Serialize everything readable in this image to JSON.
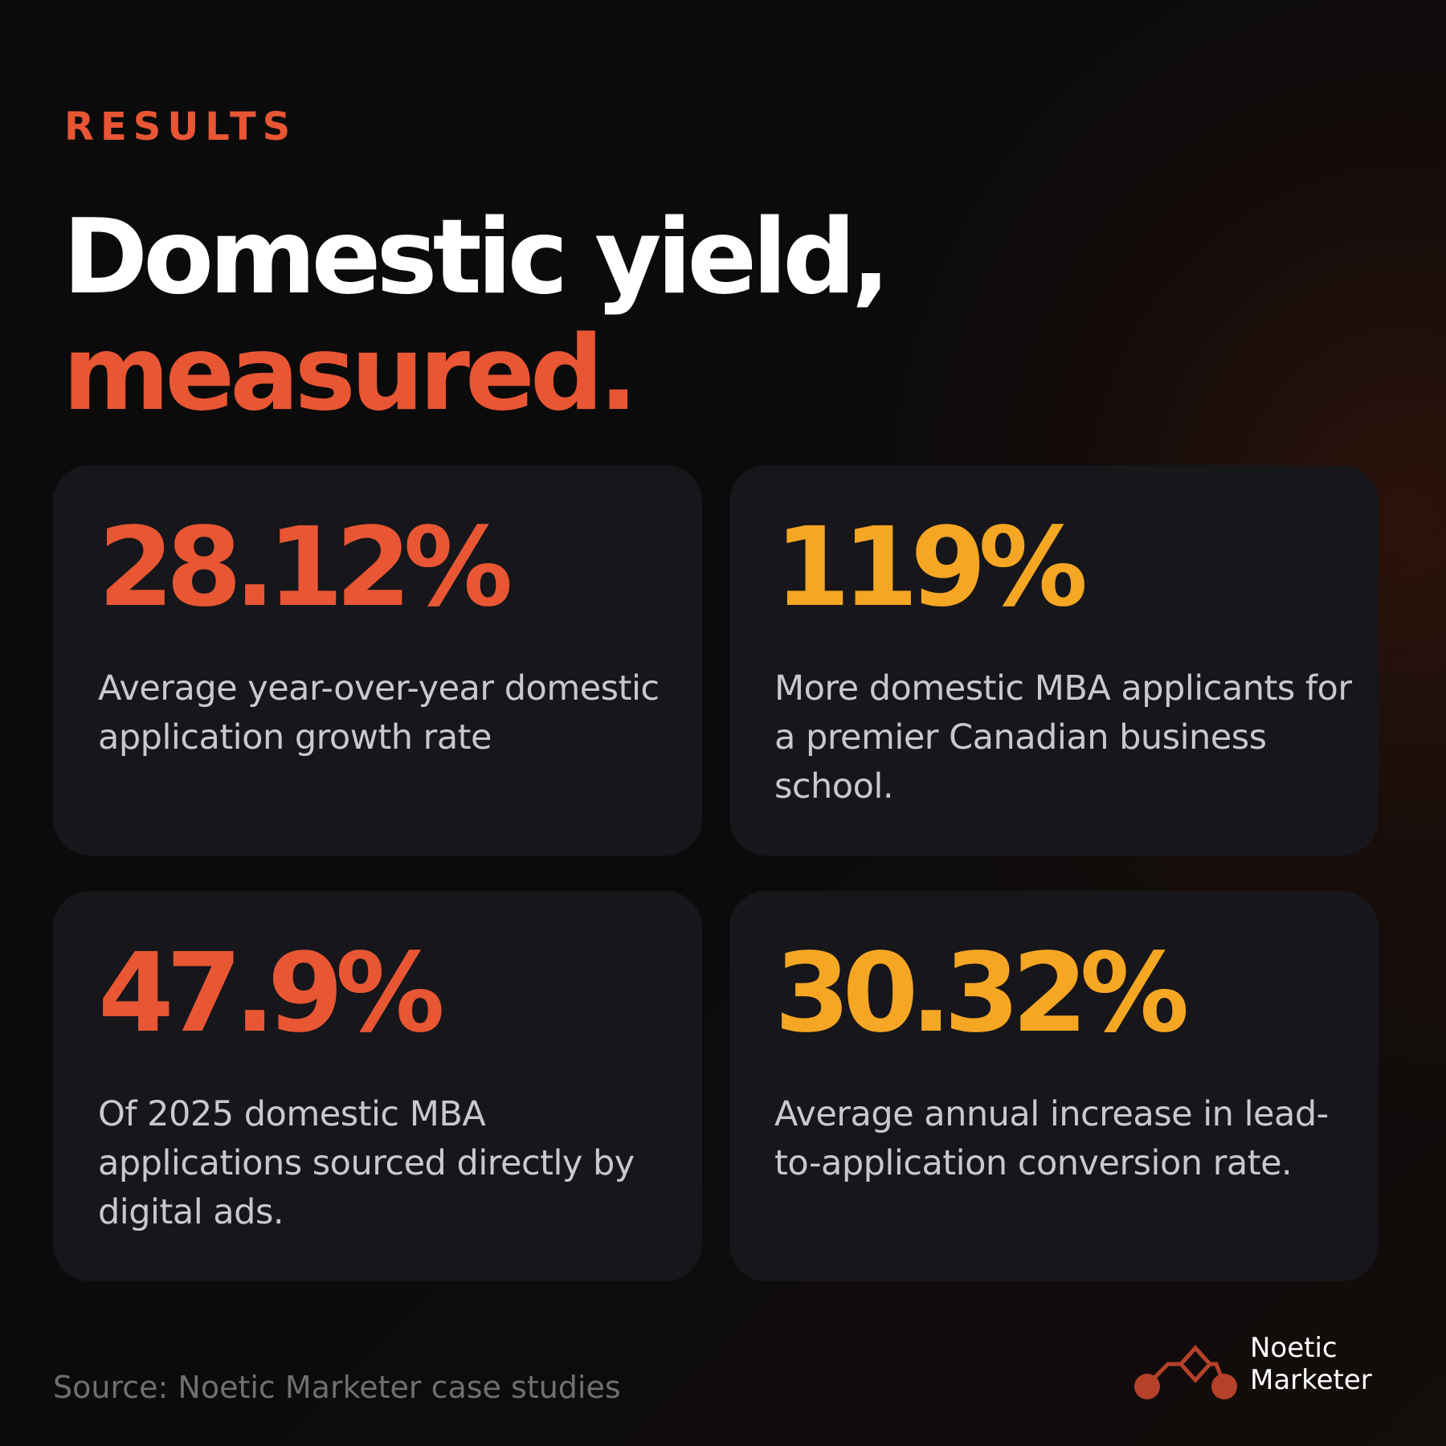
{
  "eyebrow": "RESULTS",
  "headline": {
    "line1": "Domestic yield,",
    "line2": "measured."
  },
  "cards": [
    {
      "value": "28.12%",
      "description": "Average year-over-year domestic application growth rate",
      "accent": "#e85634"
    },
    {
      "value": "119%",
      "description": "More domestic MBA applicants for a premier Canadian business school.",
      "accent": "#f5a623"
    },
    {
      "value": "47.9%",
      "description": "Of 2025 domestic MBA applications sourced directly by digital ads.",
      "accent": "#e85634"
    },
    {
      "value": "30.32%",
      "description": "Average annual increase in lead-to-application conversion rate.",
      "accent": "#f5a623"
    }
  ],
  "source": "Source: Noetic Marketer case studies",
  "logo": {
    "line1": "Noetic",
    "line2": "Marketer",
    "icon": "nodes-diamond-icon",
    "color": "#b5412a"
  }
}
